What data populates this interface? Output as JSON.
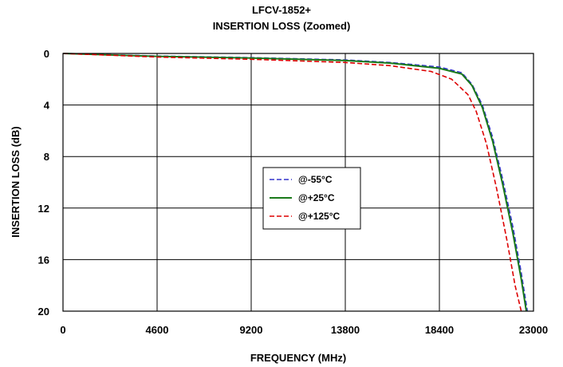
{
  "chart_data": {
    "type": "line",
    "title": "LFCV-1852+",
    "subtitle": "INSERTION LOSS (Zoomed)",
    "xlabel": "FREQUENCY (MHz)",
    "ylabel": "INSERTION LOSS (dB)",
    "xlim": [
      0,
      23000
    ],
    "ylim": [
      0,
      20
    ],
    "y_inverted": true,
    "x_ticks": [
      "0",
      "4600",
      "9200",
      "13800",
      "18400",
      "23000"
    ],
    "y_ticks": [
      "0",
      "4",
      "8",
      "12",
      "16",
      "20"
    ],
    "grid": true,
    "legend_position": "center",
    "series": [
      {
        "name": "@-55°C",
        "color": "#3333cc",
        "dash": "dashed",
        "x": [
          10,
          2000,
          4600,
          9200,
          13800,
          16000,
          18400,
          19500,
          20000,
          20500,
          21000,
          21500,
          22000,
          22400,
          22700
        ],
        "y": [
          0.0,
          0.08,
          0.2,
          0.32,
          0.5,
          0.7,
          1.05,
          1.5,
          2.4,
          4.0,
          6.5,
          9.8,
          13.5,
          17.0,
          20.0
        ]
      },
      {
        "name": "@+25°C",
        "color": "#1a7a1a",
        "dash": "solid",
        "x": [
          10,
          2000,
          4600,
          9200,
          13800,
          16000,
          18400,
          19500,
          20000,
          20500,
          21000,
          21500,
          22000,
          22400,
          22650
        ],
        "y": [
          0.0,
          0.1,
          0.22,
          0.35,
          0.55,
          0.75,
          1.15,
          1.6,
          2.5,
          4.2,
          6.8,
          10.2,
          14.0,
          17.5,
          20.0
        ]
      },
      {
        "name": "@+125°C",
        "color": "#dd0000",
        "dash": "dashed",
        "x": [
          10,
          2000,
          4600,
          9200,
          13800,
          16000,
          18000,
          19000,
          19800,
          20200,
          20700,
          21200,
          21700,
          22100,
          22400
        ],
        "y": [
          0.0,
          0.12,
          0.28,
          0.45,
          0.7,
          0.95,
          1.4,
          2.0,
          3.2,
          4.5,
          7.0,
          10.5,
          14.5,
          18.0,
          20.0
        ]
      }
    ]
  }
}
